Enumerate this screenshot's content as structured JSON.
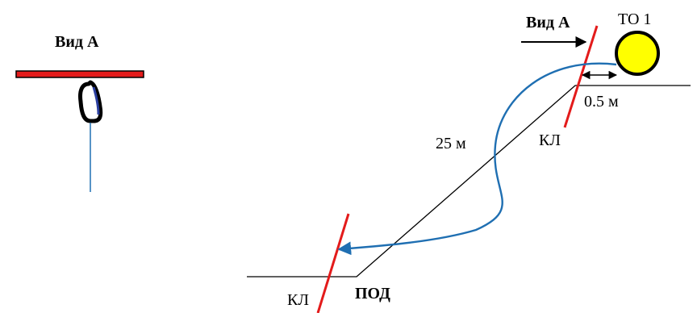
{
  "colors": {
    "line": "#000000",
    "rope": "#1f6fb2",
    "knot_line": "#e31b1b",
    "anchor_fill": "#ffff00",
    "carabiner_gate": "#2b3fa0"
  },
  "icons": {
    "carabiner": "carabiner-icon",
    "anchor": "anchor-point-icon"
  },
  "left_view": {
    "title": "Вид А"
  },
  "right_view": {
    "view_label": "Вид А",
    "anchor_label": "ТО 1",
    "distance_label": "0.5 м",
    "rope_length_label": "25 м",
    "control_line_top_label": "КЛ",
    "control_line_bottom_label": "КЛ",
    "bottom_label": "ПОД"
  }
}
